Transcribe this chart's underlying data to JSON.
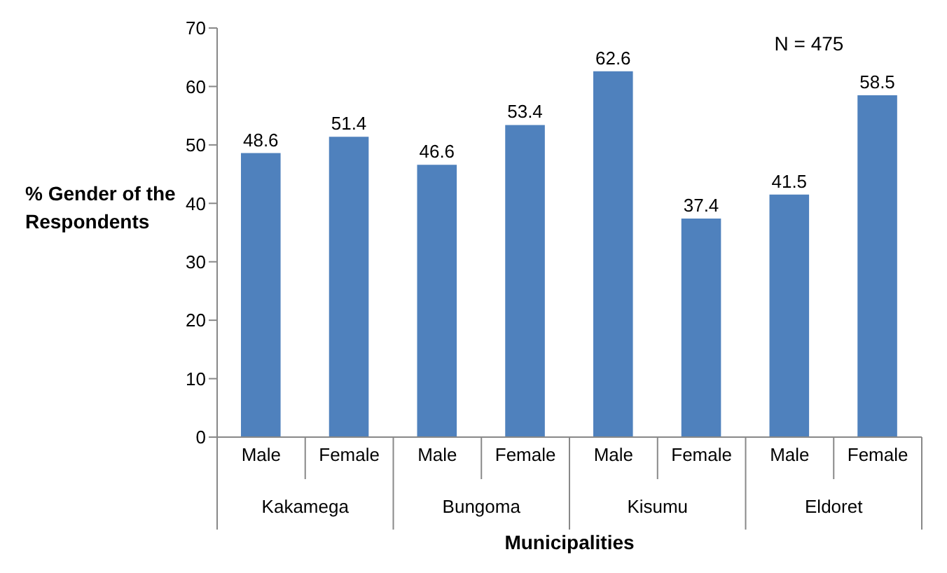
{
  "chart_data": {
    "type": "bar",
    "xlabel": "Municipalities",
    "ylabel": "% Gender of the Respondents",
    "categories": [
      "Male",
      "Female",
      "Male",
      "Female",
      "Male",
      "Female",
      "Male",
      "Female"
    ],
    "values": [
      48.6,
      51.4,
      46.6,
      53.4,
      62.6,
      37.4,
      41.5,
      58.5
    ],
    "color": "#4f81bd",
    "ylim": [
      0,
      70
    ],
    "yticks": [
      0,
      10,
      20,
      30,
      40,
      50,
      60,
      70
    ],
    "data_labels": true,
    "grid": false,
    "legend": false,
    "annotations": [
      "N = 475",
      "Kakamega",
      "Bungoma",
      "Kisumu",
      "Eldoret"
    ]
  }
}
